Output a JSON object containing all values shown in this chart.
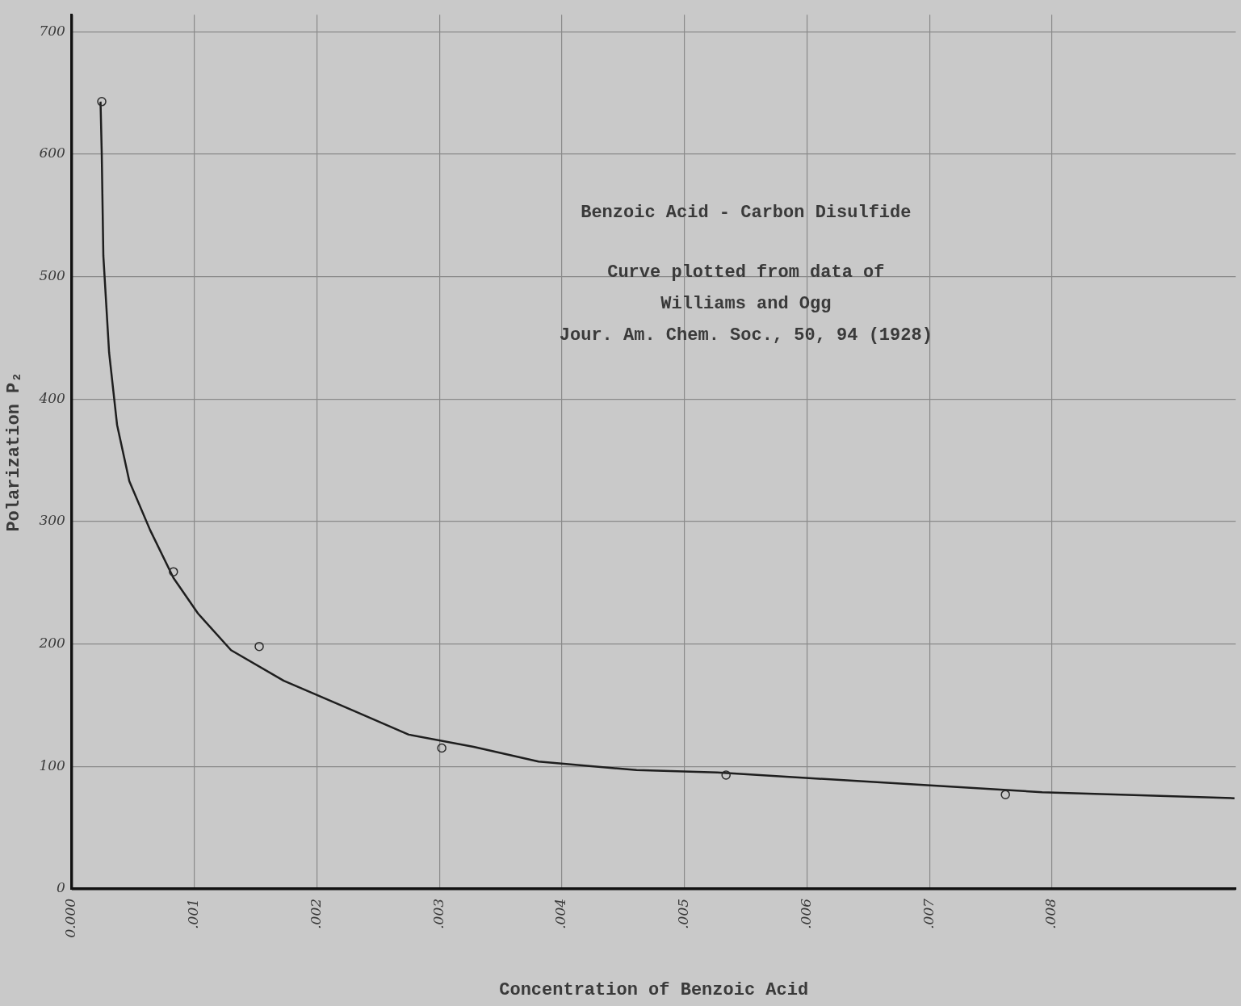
{
  "chart_data": {
    "type": "line",
    "title": "Benzoic Acid - Carbon Disulfide",
    "annotations": [
      "Curve plotted from data of",
      "Williams and Ogg",
      "Jour. Am. Chem. Soc., 50, 94 (1928)"
    ],
    "xlabel": "Concentration of Benzoic Acid",
    "ylabel": "Polarization P₂",
    "series": [
      {
        "type": "scatter",
        "color": "#2a2a2a",
        "marker": "circle",
        "x": [
          0.000245,
          0.00083,
          0.00153,
          0.00302,
          0.00534,
          0.00762
        ],
        "values": [
          643,
          259,
          198,
          115,
          93,
          77
        ]
      },
      {
        "type": "line",
        "color": "#1e1e1e",
        "marker": "none",
        "line_style": "solid",
        "x": [
          0.000235,
          0.000245,
          0.000258,
          0.000305,
          0.00037,
          0.00047,
          0.00064,
          0.00083,
          0.00103,
          0.0013,
          0.00173,
          0.00229,
          0.00275,
          0.00328,
          0.00381,
          0.00461,
          0.00527,
          0.0066,
          0.00792,
          0.00949
        ],
        "values": [
          643,
          600,
          517,
          438,
          379,
          333,
          293,
          254,
          225,
          195,
          170,
          146,
          126,
          116,
          104,
          97,
          95,
          87,
          79,
          74
        ]
      }
    ],
    "xlim": [
      0,
      0.0095
    ],
    "xticks": [
      {
        "value": 0,
        "label": "0.000"
      },
      {
        "value": 0.001,
        "label": ".001"
      },
      {
        "value": 0.002,
        "label": ".002"
      },
      {
        "value": 0.003,
        "label": ".003"
      },
      {
        "value": 0.004,
        "label": ".004"
      },
      {
        "value": 0.005,
        "label": ".005"
      },
      {
        "value": 0.006,
        "label": ".006"
      },
      {
        "value": 0.007,
        "label": ".007"
      },
      {
        "value": 0.008,
        "label": ".008"
      }
    ],
    "ylim": [
      0,
      714
    ],
    "yticks": [
      0,
      100,
      200,
      300,
      400,
      500,
      600,
      700
    ],
    "grid": true,
    "legend": false
  }
}
